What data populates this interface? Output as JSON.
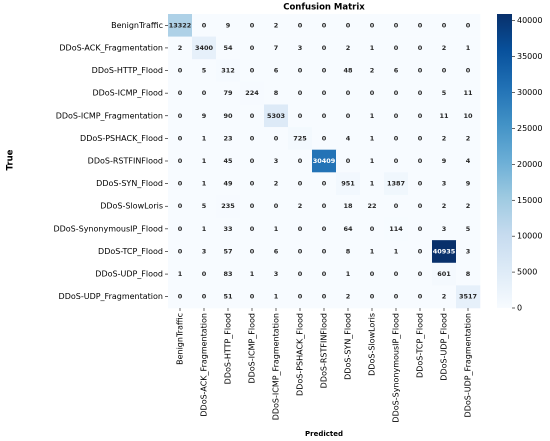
{
  "chart_data": {
    "type": "heatmap",
    "title": "Confusion Matrix",
    "x_label": "Predicted",
    "y_label": "True",
    "categories": [
      "BenignTraffic",
      "DDoS-ACK_Fragmentation",
      "DDoS-HTTP_Flood",
      "DDoS-ICMP_Flood",
      "DDoS-ICMP_Fragmentation",
      "DDoS-PSHACK_Flood",
      "DDoS-RSTFINFlood",
      "DDoS-SYN_Flood",
      "DDoS-SlowLoris",
      "DDoS-SynonymousIP_Flood",
      "DDoS-TCP_Flood",
      "DDoS-UDP_Flood",
      "DDoS-UDP_Fragmentation"
    ],
    "matrix": [
      [
        13322,
        0,
        9,
        0,
        2,
        0,
        0,
        0,
        0,
        0,
        0,
        0,
        0
      ],
      [
        2,
        3400,
        54,
        0,
        7,
        3,
        0,
        2,
        1,
        0,
        0,
        2,
        1
      ],
      [
        0,
        5,
        312,
        0,
        6,
        0,
        0,
        48,
        2,
        6,
        0,
        0,
        0
      ],
      [
        0,
        0,
        79,
        224,
        8,
        0,
        0,
        0,
        0,
        0,
        0,
        5,
        11
      ],
      [
        0,
        9,
        90,
        0,
        5303,
        0,
        0,
        0,
        1,
        0,
        0,
        11,
        10
      ],
      [
        0,
        1,
        23,
        0,
        0,
        725,
        0,
        4,
        1,
        0,
        0,
        2,
        2
      ],
      [
        0,
        1,
        45,
        0,
        3,
        0,
        30409,
        0,
        1,
        0,
        0,
        9,
        4
      ],
      [
        0,
        1,
        49,
        0,
        2,
        0,
        0,
        951,
        1,
        1387,
        0,
        3,
        9
      ],
      [
        0,
        5,
        235,
        0,
        0,
        2,
        0,
        18,
        22,
        0,
        0,
        2,
        2
      ],
      [
        0,
        1,
        33,
        0,
        1,
        0,
        0,
        64,
        0,
        114,
        0,
        3,
        5
      ],
      [
        0,
        3,
        57,
        0,
        6,
        0,
        0,
        8,
        1,
        1,
        0,
        40935,
        3
      ],
      [
        1,
        0,
        83,
        1,
        3,
        0,
        0,
        1,
        0,
        0,
        0,
        601,
        8
      ],
      [
        0,
        0,
        51,
        0,
        1,
        0,
        0,
        2,
        0,
        0,
        0,
        2,
        3517
      ]
    ],
    "zlim": [
      0,
      40935
    ],
    "zticks": [
      0,
      5000,
      10000,
      15000,
      20000,
      25000,
      30000,
      35000,
      40000
    ],
    "colormap": [
      "#f7fbff",
      "#deebf7",
      "#c6dbef",
      "#9ecae1",
      "#6baed6",
      "#4292c6",
      "#2171b5",
      "#08519c",
      "#08306b"
    ]
  }
}
